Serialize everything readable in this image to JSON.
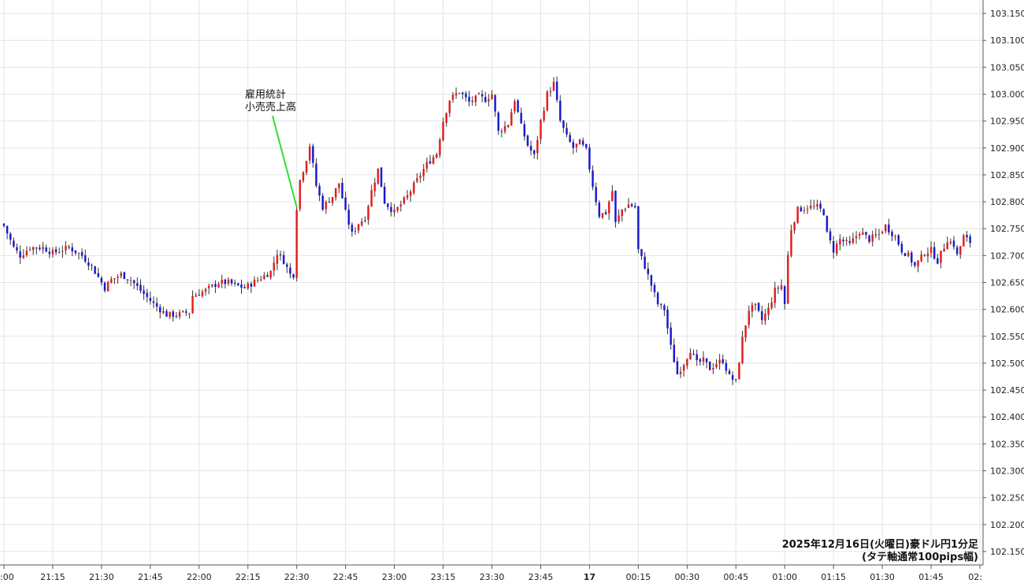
{
  "chart_data": {
    "type": "candlestick",
    "title": "2025年12月16日(火曜日)豪ドル円1分足",
    "subtitle": "(タテ軸通常100pips幅)",
    "ylim": [
      102.125,
      103.175
    ],
    "y_ticks": [
      "102.150",
      "102.200",
      "102.250",
      "102.300",
      "102.350",
      "102.400",
      "102.450",
      "102.500",
      "102.550",
      "102.600",
      "102.650",
      "102.700",
      "102.750",
      "102.800",
      "102.850",
      "102.900",
      "102.950",
      "103.000",
      "103.050",
      "103.100",
      "103.150"
    ],
    "x_ticks": [
      {
        "label": ":00",
        "minute": 0
      },
      {
        "label": "21:15",
        "minute": 15
      },
      {
        "label": "21:30",
        "minute": 30
      },
      {
        "label": "21:45",
        "minute": 45
      },
      {
        "label": "22:00",
        "minute": 60
      },
      {
        "label": "22:15",
        "minute": 75
      },
      {
        "label": "22:30",
        "minute": 90
      },
      {
        "label": "22:45",
        "minute": 105
      },
      {
        "label": "23:00",
        "minute": 120
      },
      {
        "label": "23:15",
        "minute": 135
      },
      {
        "label": "23:30",
        "minute": 150
      },
      {
        "label": "23:45",
        "minute": 165
      },
      {
        "label": "17",
        "minute": 180,
        "bold": true
      },
      {
        "label": "00:15",
        "minute": 195
      },
      {
        "label": "00:30",
        "minute": 210
      },
      {
        "label": "00:45",
        "minute": 225
      },
      {
        "label": "01:00",
        "minute": 240
      },
      {
        "label": "01:15",
        "minute": 255
      },
      {
        "label": "01:30",
        "minute": 270
      },
      {
        "label": "01:45",
        "minute": 285
      },
      {
        "label": "02:",
        "minute": 300
      }
    ],
    "x_minutes_range": [
      0,
      300
    ],
    "annotation": {
      "lines": [
        "雇用統計",
        "小売売上高"
      ],
      "minute": 90,
      "price": 102.79
    },
    "colors": {
      "up": "#e02020",
      "down": "#1a1ad0",
      "annotation_line": "#33dd33",
      "grid": "#e4e4e4"
    },
    "keypoints": [
      [
        0,
        102.755
      ],
      [
        3,
        102.715
      ],
      [
        5,
        102.7
      ],
      [
        8,
        102.715
      ],
      [
        12,
        102.715
      ],
      [
        15,
        102.705
      ],
      [
        20,
        102.715
      ],
      [
        24,
        102.7
      ],
      [
        27,
        102.68
      ],
      [
        31,
        102.64
      ],
      [
        33,
        102.655
      ],
      [
        36,
        102.665
      ],
      [
        39,
        102.655
      ],
      [
        42,
        102.635
      ],
      [
        46,
        102.61
      ],
      [
        50,
        102.59
      ],
      [
        53,
        102.59
      ],
      [
        57,
        102.595
      ],
      [
        58,
        102.625
      ],
      [
        62,
        102.635
      ],
      [
        66,
        102.65
      ],
      [
        69,
        102.65
      ],
      [
        71,
        102.645
      ],
      [
        74,
        102.64
      ],
      [
        78,
        102.655
      ],
      [
        82,
        102.67
      ],
      [
        84,
        102.705
      ],
      [
        86,
        102.69
      ],
      [
        88,
        102.665
      ],
      [
        89,
        102.665
      ],
      [
        90,
        102.79
      ],
      [
        91,
        102.84
      ],
      [
        93,
        102.88
      ],
      [
        94,
        102.905
      ],
      [
        96,
        102.83
      ],
      [
        98,
        102.79
      ],
      [
        101,
        102.81
      ],
      [
        103,
        102.835
      ],
      [
        105,
        102.78
      ],
      [
        107,
        102.74
      ],
      [
        109,
        102.76
      ],
      [
        111,
        102.77
      ],
      [
        113,
        102.82
      ],
      [
        115,
        102.86
      ],
      [
        117,
        102.8
      ],
      [
        120,
        102.78
      ],
      [
        122,
        102.795
      ],
      [
        124,
        102.81
      ],
      [
        127,
        102.84
      ],
      [
        130,
        102.87
      ],
      [
        133,
        102.89
      ],
      [
        135,
        102.95
      ],
      [
        137,
        102.99
      ],
      [
        140,
        103.005
      ],
      [
        143,
        102.985
      ],
      [
        146,
        102.995
      ],
      [
        148,
        102.99
      ],
      [
        150,
        103.0
      ],
      [
        152,
        102.93
      ],
      [
        155,
        102.945
      ],
      [
        157,
        102.99
      ],
      [
        159,
        102.94
      ],
      [
        161,
        102.905
      ],
      [
        163,
        102.885
      ],
      [
        165,
        102.95
      ],
      [
        167,
        103.0
      ],
      [
        169,
        103.02
      ],
      [
        171,
        102.95
      ],
      [
        173,
        102.92
      ],
      [
        175,
        102.9
      ],
      [
        177,
        102.91
      ],
      [
        179,
        102.895
      ],
      [
        181,
        102.83
      ],
      [
        183,
        102.775
      ],
      [
        185,
        102.78
      ],
      [
        187,
        102.82
      ],
      [
        188,
        102.76
      ],
      [
        190,
        102.785
      ],
      [
        192,
        102.795
      ],
      [
        194,
        102.79
      ],
      [
        195,
        102.71
      ],
      [
        197,
        102.68
      ],
      [
        199,
        102.645
      ],
      [
        201,
        102.61
      ],
      [
        203,
        102.6
      ],
      [
        205,
        102.53
      ],
      [
        207,
        102.48
      ],
      [
        209,
        102.5
      ],
      [
        211,
        102.525
      ],
      [
        213,
        102.5
      ],
      [
        215,
        102.505
      ],
      [
        217,
        102.49
      ],
      [
        219,
        102.5
      ],
      [
        221,
        102.505
      ],
      [
        223,
        102.475
      ],
      [
        225,
        102.465
      ],
      [
        227,
        102.545
      ],
      [
        229,
        102.6
      ],
      [
        231,
        102.605
      ],
      [
        233,
        102.58
      ],
      [
        235,
        102.6
      ],
      [
        237,
        102.635
      ],
      [
        239,
        102.645
      ],
      [
        240,
        102.61
      ],
      [
        241,
        102.7
      ],
      [
        242,
        102.75
      ],
      [
        244,
        102.785
      ],
      [
        247,
        102.79
      ],
      [
        250,
        102.79
      ],
      [
        252,
        102.78
      ],
      [
        253,
        102.74
      ],
      [
        255,
        102.71
      ],
      [
        257,
        102.73
      ],
      [
        260,
        102.72
      ],
      [
        263,
        102.745
      ],
      [
        266,
        102.73
      ],
      [
        269,
        102.74
      ],
      [
        271,
        102.755
      ],
      [
        274,
        102.735
      ],
      [
        276,
        102.71
      ],
      [
        278,
        102.7
      ],
      [
        280,
        102.68
      ],
      [
        283,
        102.705
      ],
      [
        285,
        102.71
      ],
      [
        287,
        102.69
      ],
      [
        290,
        102.73
      ],
      [
        292,
        102.72
      ],
      [
        293,
        102.7
      ],
      [
        295,
        102.735
      ],
      [
        297,
        102.725
      ]
    ]
  }
}
